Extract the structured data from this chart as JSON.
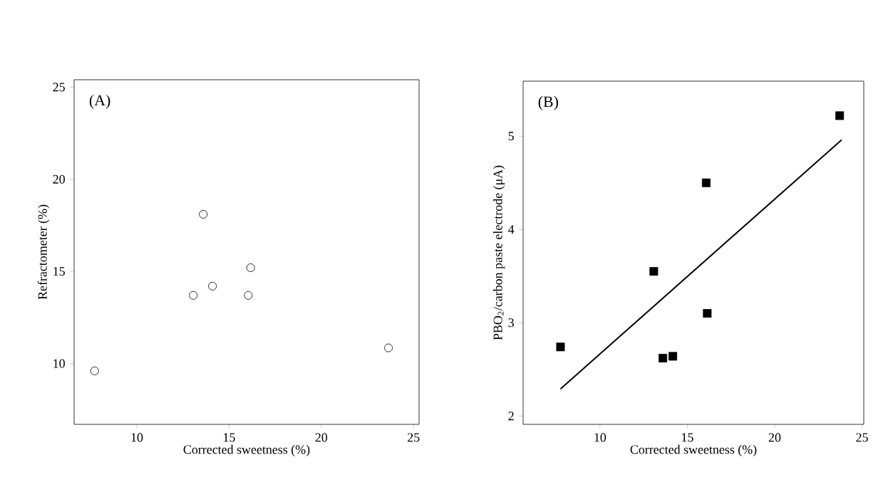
{
  "chart_data": [
    {
      "type": "scatter",
      "xlabel": "Corrected sweetness (%)",
      "ylabel": "Refractometer (%)",
      "annotations": [
        "(A)"
      ],
      "xlim": [
        6.6,
        25.3
      ],
      "ylim": [
        6.7,
        25.4
      ],
      "xticks": [
        10,
        15,
        20,
        25
      ],
      "yticks": [
        10,
        15,
        20,
        25
      ],
      "marker": "circle",
      "series": [
        {
          "color": "#000000",
          "x": [
            7.71,
            13.6,
            16.17,
            14.1,
            13.06,
            16.04,
            23.64
          ],
          "values": [
            9.6,
            18.1,
            15.2,
            14.2,
            13.7,
            13.7,
            10.85
          ]
        }
      ]
    },
    {
      "type": "scatter",
      "xlabel": "Corrected sweetness (%)",
      "ylabel": "PBO$_{2}$/carbon paste electrode (μA)",
      "annotations": [
        "(B)"
      ],
      "xlim": [
        5.6,
        25.1
      ],
      "ylim": [
        1.91,
        5.59
      ],
      "xticks": [
        10,
        15,
        20,
        25
      ],
      "yticks": [
        2,
        3,
        4,
        5
      ],
      "marker": "square",
      "series": [
        {
          "color": "#000000",
          "x": [
            7.74,
            13.08,
            13.6,
            14.17,
            16.08,
            16.14,
            23.72
          ],
          "values": [
            2.74,
            3.55,
            2.62,
            2.64,
            4.5,
            3.1,
            5.22
          ]
        },
        {
          "type": "line",
          "marker": "none",
          "color": "#000000",
          "x": [
            7.74,
            23.83
          ],
          "values": [
            2.29,
            4.96
          ]
        }
      ]
    }
  ]
}
